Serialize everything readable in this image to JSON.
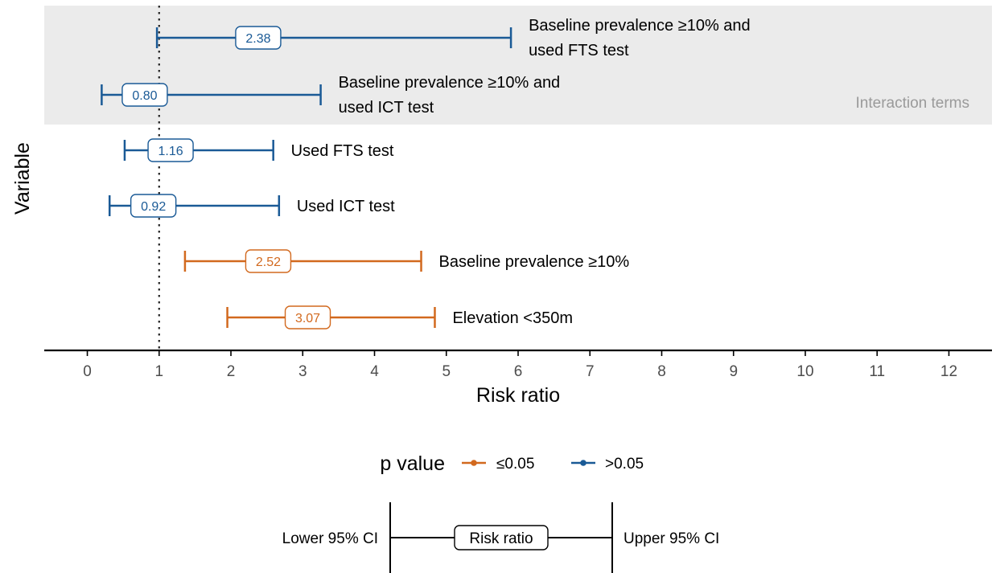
{
  "chart_data": {
    "type": "forest",
    "xlabel": "Risk ratio",
    "ylabel": "Variable",
    "xlim": [
      -0.6,
      12.6
    ],
    "xticks": [
      0,
      1,
      2,
      3,
      4,
      5,
      6,
      7,
      8,
      9,
      10,
      11,
      12
    ],
    "reference_line": 1,
    "grid": false,
    "colors": {
      "sig": "#d2691e",
      "nonsig": "#1a5a96",
      "band": "#ebebeb"
    },
    "band_label": "Interaction terms",
    "rows": [
      {
        "label": [
          "Baseline prevalence ≥10% and",
          "used FTS test"
        ],
        "estimate": 2.38,
        "display": "2.38",
        "lower": 0.97,
        "upper": 5.9,
        "group": "nonsig",
        "interaction": true
      },
      {
        "label": [
          "Baseline prevalence ≥10% and",
          "used ICT test"
        ],
        "estimate": 0.8,
        "display": "0.80",
        "lower": 0.2,
        "upper": 3.25,
        "group": "nonsig",
        "interaction": true
      },
      {
        "label": [
          "Used FTS test"
        ],
        "estimate": 1.16,
        "display": "1.16",
        "lower": 0.52,
        "upper": 2.59,
        "group": "nonsig",
        "interaction": false
      },
      {
        "label": [
          "Used ICT test"
        ],
        "estimate": 0.92,
        "display": "0.92",
        "lower": 0.31,
        "upper": 2.67,
        "group": "nonsig",
        "interaction": false
      },
      {
        "label": [
          "Baseline prevalence ≥10%"
        ],
        "estimate": 2.52,
        "display": "2.52",
        "lower": 1.36,
        "upper": 4.65,
        "group": "sig",
        "interaction": false
      },
      {
        "label": [
          "Elevation <350m"
        ],
        "estimate": 3.07,
        "display": "3.07",
        "lower": 1.95,
        "upper": 4.84,
        "group": "sig",
        "interaction": false
      }
    ]
  },
  "legend": {
    "title": "p value",
    "items": [
      {
        "label": "≤0.05",
        "group": "sig"
      },
      {
        "label": ">0.05",
        "group": "nonsig"
      }
    ]
  },
  "key": {
    "lower": "Lower 95% CI",
    "center": "Risk ratio",
    "upper": "Upper 95% CI"
  }
}
